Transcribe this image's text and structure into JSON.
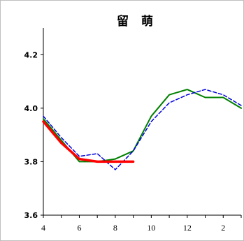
{
  "chart_data": {
    "type": "line",
    "title": "留 萌",
    "xlabel": "",
    "ylabel": "",
    "x_categories": [
      4,
      5,
      6,
      7,
      8,
      9,
      10,
      11,
      12,
      1,
      2,
      3
    ],
    "x_tick_labels": [
      "4",
      "6",
      "8",
      "10",
      "12",
      "2"
    ],
    "ylim": [
      3.6,
      4.3
    ],
    "y_ticks": [
      "3.6",
      "3.8",
      "4.0",
      "4.2"
    ],
    "grid": false,
    "legend": "none",
    "series": [
      {
        "color": "#008000",
        "style": "solid",
        "values": [
          3.96,
          3.88,
          3.8,
          3.8,
          3.81,
          3.84,
          3.97,
          4.05,
          4.07,
          4.04,
          4.04,
          4.0
        ]
      },
      {
        "color": "#0000dd",
        "style": "dashed",
        "values": [
          3.97,
          3.89,
          3.82,
          3.83,
          3.77,
          3.84,
          3.95,
          4.02,
          4.05,
          4.07,
          4.05,
          4.01
        ]
      },
      {
        "color": "#ff0000",
        "style": "thick",
        "values": [
          3.95,
          3.87,
          3.81,
          3.8,
          3.8,
          3.8,
          null,
          null,
          null,
          null,
          null,
          null
        ]
      }
    ]
  }
}
